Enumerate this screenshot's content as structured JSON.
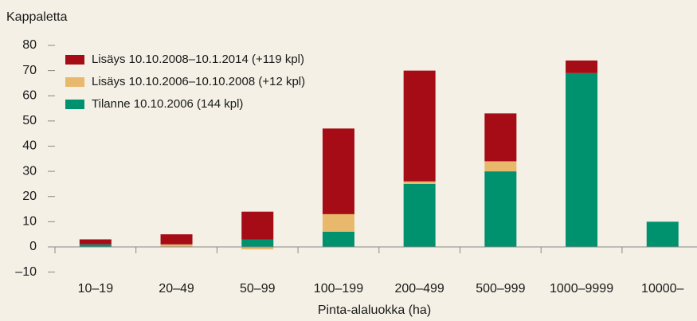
{
  "chart_data": {
    "type": "stacked_bar",
    "y_label": "Kappaletta",
    "x_label": "Pinta-alaluokka (ha)",
    "categories": [
      "10–19",
      "20–49",
      "50–99",
      "100–199",
      "200–499",
      "500–999",
      "1000–9999",
      "10000–"
    ],
    "series": [
      {
        "name": "Tilanne 10.10.2006 (144 kpl)",
        "color": "#00916e",
        "values": [
          1,
          0,
          3,
          6,
          25,
          30,
          69,
          10
        ]
      },
      {
        "name": "Lisäys 10.10.2006–10.10.2008 (+12 kpl)",
        "color": "#e8b96c",
        "values": [
          0,
          1,
          -1,
          7,
          1,
          4,
          0,
          0
        ]
      },
      {
        "name": "Lisäys 10.10.2008–10.1.2014 (+119 kpl)",
        "color": "#a50c16",
        "values": [
          2,
          4,
          11,
          34,
          44,
          19,
          5,
          0
        ]
      }
    ],
    "ylim": [
      -10,
      80
    ],
    "yticks": [
      {
        "value": -10,
        "label": "–10"
      },
      0,
      10,
      20,
      30,
      40,
      50,
      60,
      70,
      80
    ],
    "grid": false
  }
}
